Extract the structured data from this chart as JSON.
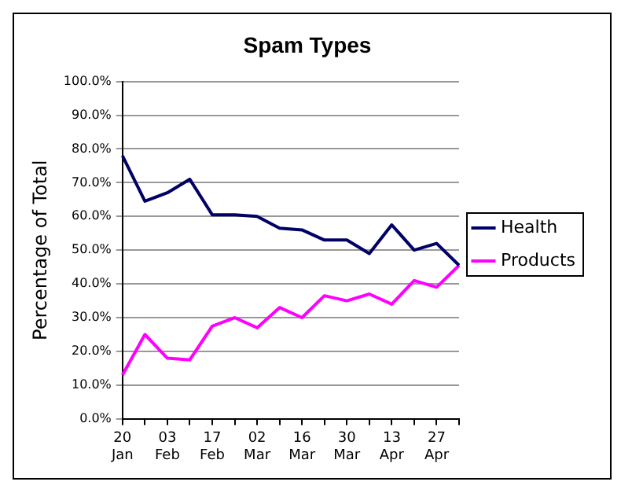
{
  "chart_data": {
    "type": "line",
    "title": "Spam Types",
    "ylabel": "Percentage of Total",
    "categories": [
      "20 Jan",
      null,
      "03 Feb",
      null,
      "17 Feb",
      null,
      "02 Mar",
      null,
      "16 Mar",
      null,
      "30 Mar",
      null,
      "13 Apr",
      null,
      "27 Apr",
      null
    ],
    "series": [
      {
        "name": "Health",
        "color": "#000066",
        "values": [
          78,
          64.5,
          67,
          71,
          60.5,
          60.5,
          60,
          56.5,
          56,
          53,
          53,
          49,
          57.5,
          50,
          52,
          45.5
        ]
      },
      {
        "name": "Products",
        "color": "#ff00ff",
        "values": [
          13,
          25,
          18,
          17.5,
          27.5,
          30,
          27,
          33,
          30,
          36.5,
          35,
          37,
          34,
          41,
          39,
          45.5
        ]
      }
    ],
    "ylim": [
      0,
      100
    ],
    "yticks": [
      {
        "value": 0,
        "label": "0.0%"
      },
      {
        "value": 10,
        "label": "10.0%"
      },
      {
        "value": 20,
        "label": "20.0%"
      },
      {
        "value": 30,
        "label": "30.0%"
      },
      {
        "value": 40,
        "label": "40.0%"
      },
      {
        "value": 50,
        "label": "50.0%"
      },
      {
        "value": 60,
        "label": "60.0%"
      },
      {
        "value": 70,
        "label": "70.0%"
      },
      {
        "value": 80,
        "label": "80.0%"
      },
      {
        "value": 90,
        "label": "90.0%"
      },
      {
        "value": 100,
        "label": "100.0%"
      }
    ],
    "grid": "y",
    "legend": "right",
    "marker": "none",
    "line_style": "solid"
  }
}
